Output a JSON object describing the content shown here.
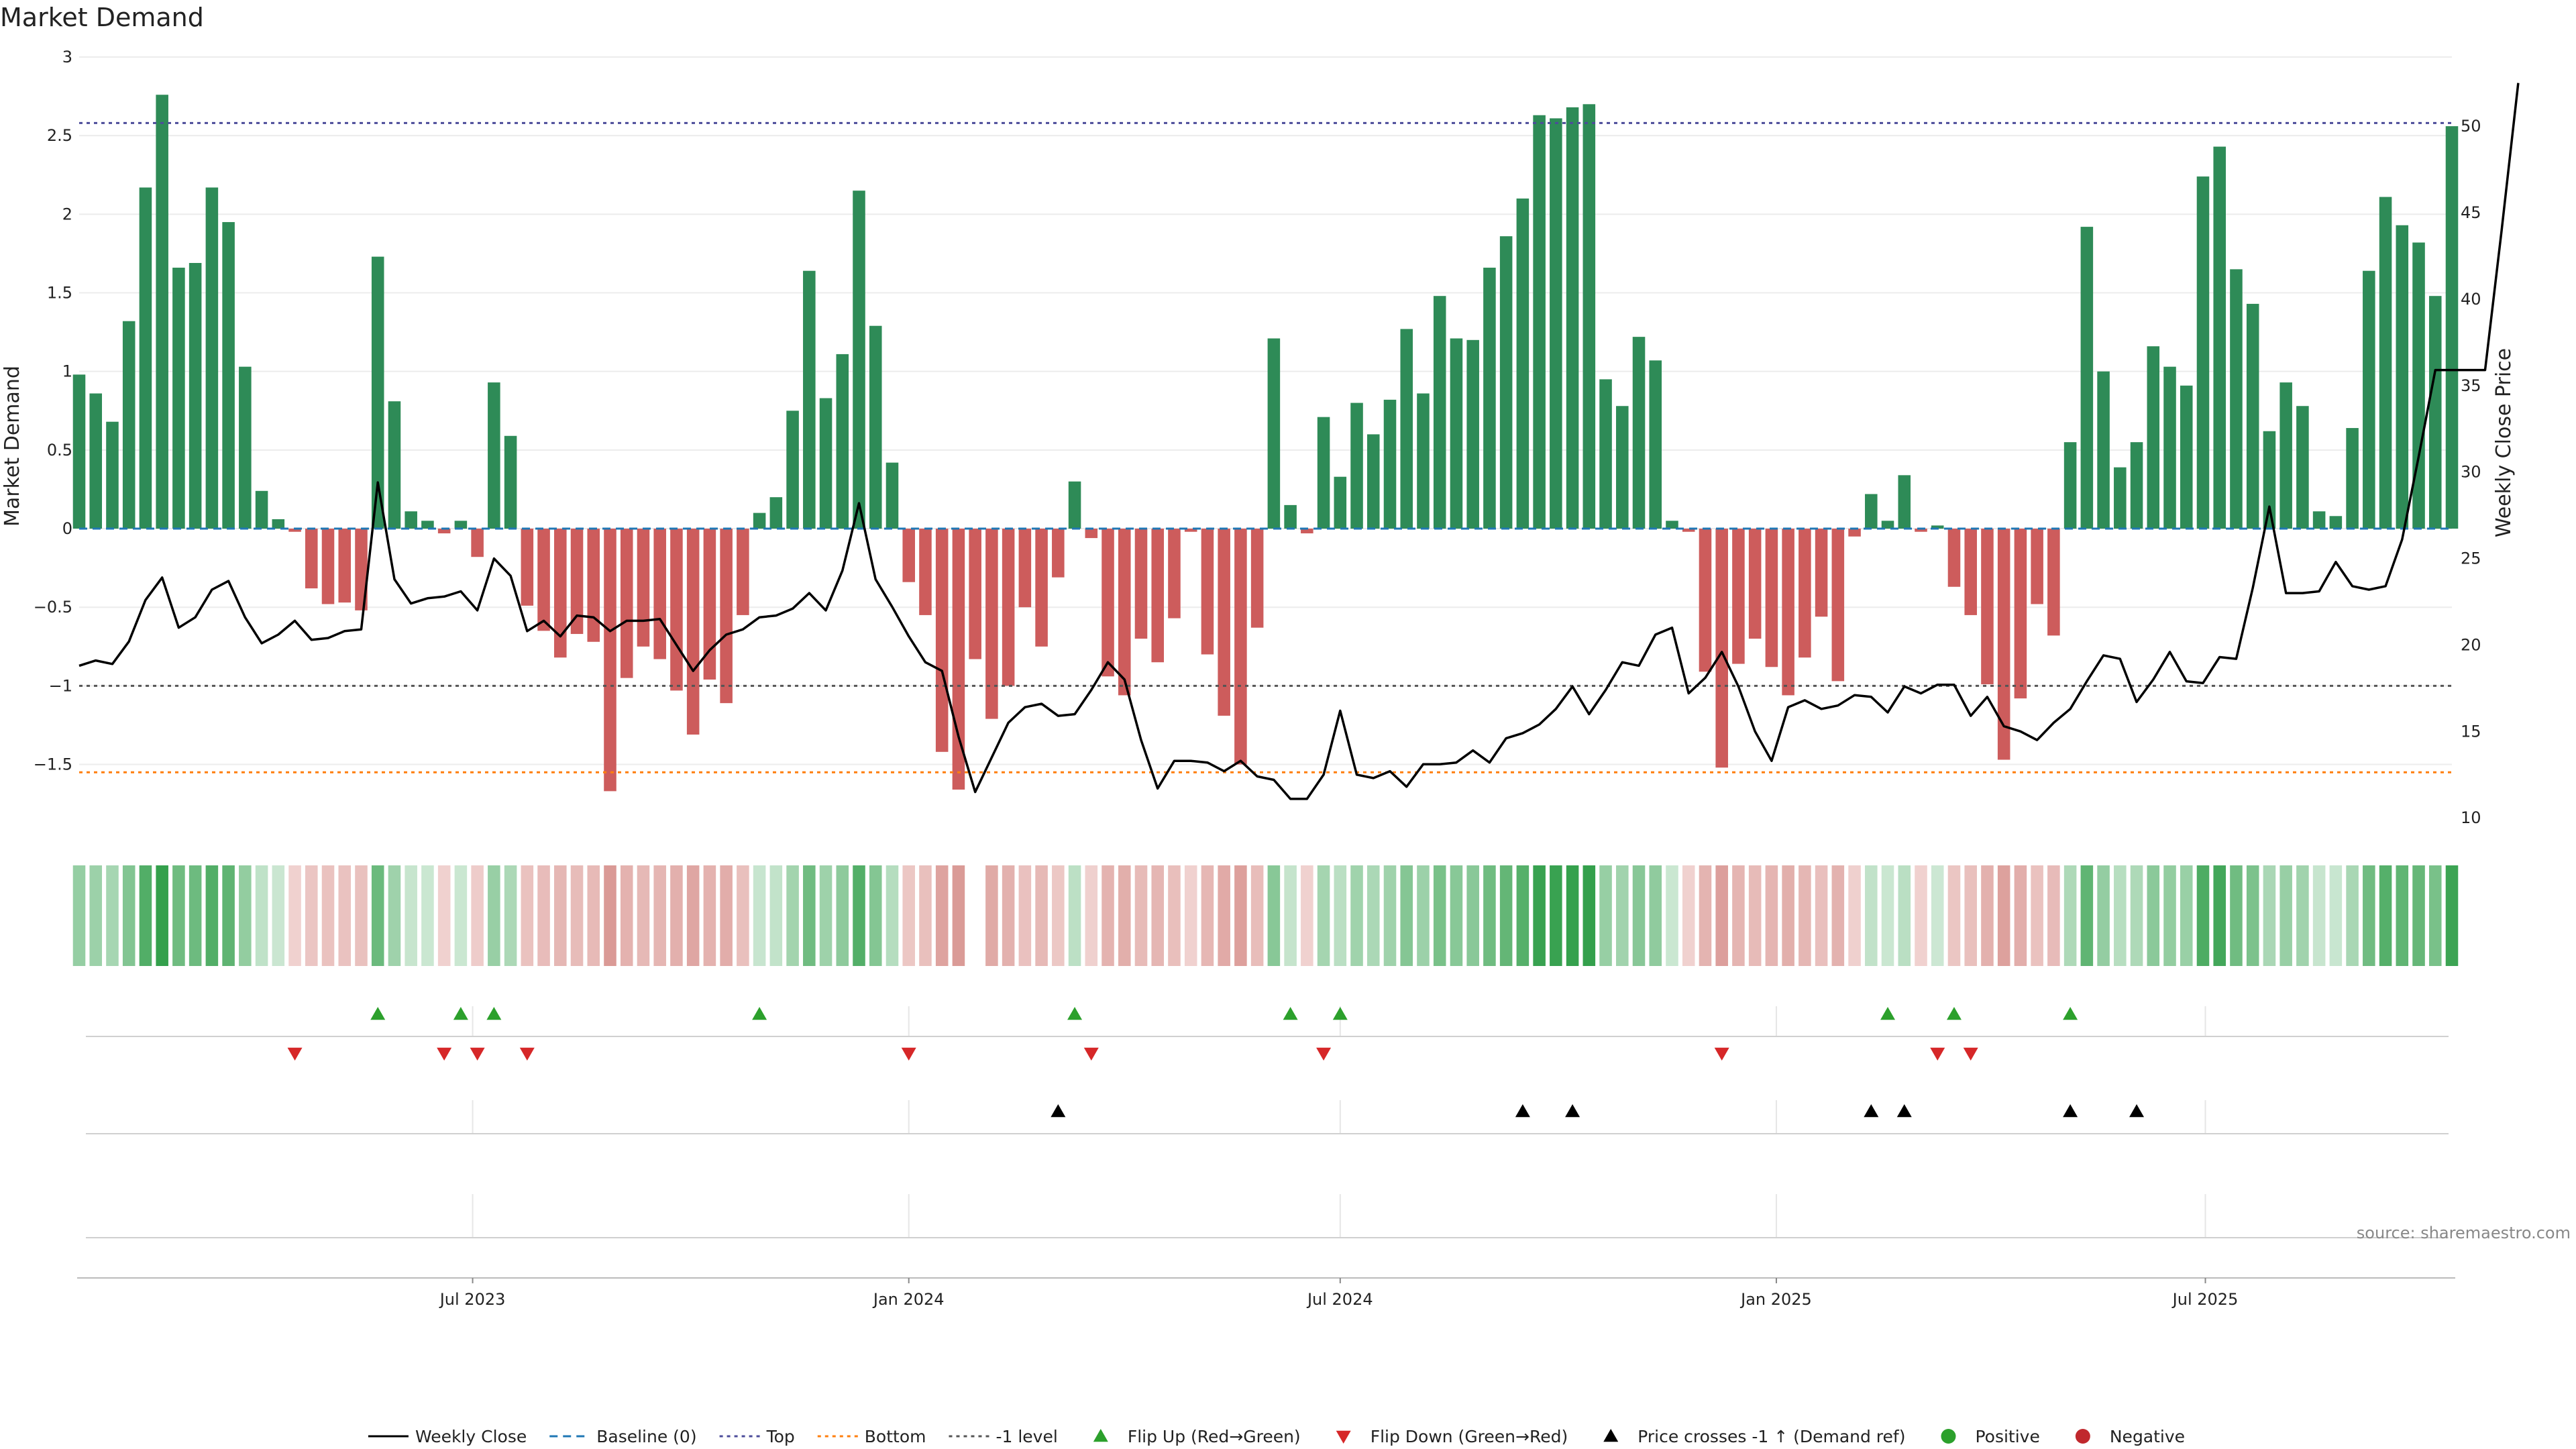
{
  "chart_data": {
    "type": "bar",
    "title": "Market Demand",
    "ylabel": "Market Demand",
    "y2label": "Weekly Close Price",
    "ylim": [
      -1.95,
      3.0
    ],
    "y2lim": [
      9,
      54
    ],
    "yticks": [
      3,
      2.5,
      2,
      1.5,
      1,
      0.5,
      0,
      -0.5,
      -1,
      -1.5
    ],
    "ytick_labels": [
      "3",
      "2.5",
      "2",
      "1.5",
      "1",
      "0.5",
      "0",
      "−0.5",
      "−1",
      "−1.5"
    ],
    "y2ticks": [
      10,
      15,
      20,
      25,
      30,
      35,
      40,
      45,
      50
    ],
    "x_range": [
      "2023-01-16",
      "2025-10-13"
    ],
    "xticks": [
      {
        "label": "Jul 2023",
        "date": "2023-07-01"
      },
      {
        "label": "Jan 2024",
        "date": "2024-01-01"
      },
      {
        "label": "Jul 2024",
        "date": "2024-07-01"
      },
      {
        "label": "Jan 2025",
        "date": "2025-01-01"
      },
      {
        "label": "Jul 2025",
        "date": "2025-07-01"
      }
    ],
    "start_week": "2023-01-16",
    "demand": [
      0.98,
      0.86,
      0.68,
      1.32,
      2.17,
      2.76,
      1.66,
      1.69,
      2.17,
      1.95,
      1.03,
      0.24,
      0.06,
      -0.02,
      -0.38,
      -0.48,
      -0.47,
      -0.52,
      1.73,
      0.81,
      0.11,
      0.05,
      -0.03,
      0.05,
      -0.18,
      0.93,
      0.59,
      -0.49,
      -0.65,
      -0.82,
      -0.67,
      -0.72,
      -1.67,
      -0.95,
      -0.75,
      -0.83,
      -1.03,
      -1.31,
      -0.96,
      -1.11,
      -0.55,
      0.1,
      0.2,
      0.75,
      1.64,
      0.83,
      1.11,
      2.15,
      1.29,
      0.42,
      -0.34,
      -0.55,
      -1.42,
      -1.66,
      -0.83,
      -1.21,
      -1.0,
      -0.5,
      -0.75,
      -0.31,
      0.3,
      -0.06,
      -0.94,
      -1.06,
      -0.7,
      -0.85,
      -0.57,
      -0.02,
      -0.8,
      -1.19,
      -1.5,
      -0.63,
      1.21,
      0.15,
      -0.03,
      0.71,
      0.33,
      0.8,
      0.6,
      0.82,
      1.27,
      0.86,
      1.48,
      1.21,
      1.2,
      1.66,
      1.86,
      2.1,
      2.63,
      2.61,
      2.68,
      2.7,
      0.95,
      0.78,
      1.22,
      1.07,
      0.05,
      -0.02,
      -0.91,
      -1.52,
      -0.86,
      -0.7,
      -0.88,
      -1.06,
      -0.82,
      -0.56,
      -0.97,
      -0.05,
      0.22,
      0.05,
      0.34,
      -0.02,
      0.02,
      -0.37,
      -0.55,
      -0.99,
      -1.47,
      -1.08,
      -0.48,
      -0.68,
      0.55,
      1.92,
      1.0,
      0.39,
      0.55,
      1.16,
      1.03,
      0.91,
      2.24,
      2.43,
      1.65,
      1.43,
      0.62,
      0.93,
      0.78,
      0.11,
      0.08,
      0.64,
      1.64,
      2.11,
      1.93,
      1.82,
      1.48,
      2.56
    ],
    "weekly_close": [
      18.8,
      19.1,
      18.9,
      20.2,
      22.6,
      23.9,
      21.0,
      21.6,
      23.2,
      23.7,
      21.6,
      20.1,
      20.6,
      21.4,
      20.3,
      20.4,
      20.8,
      20.9,
      29.4,
      23.8,
      22.4,
      22.7,
      22.8,
      23.1,
      22.0,
      25.0,
      24.0,
      20.8,
      21.4,
      20.5,
      21.7,
      21.6,
      20.8,
      21.4,
      21.4,
      21.5,
      20.0,
      18.5,
      19.7,
      20.6,
      20.9,
      21.6,
      21.7,
      22.1,
      23.0,
      22.0,
      24.3,
      28.2,
      23.8,
      22.2,
      20.5,
      19.0,
      18.5,
      14.7,
      11.5,
      13.5,
      15.5,
      16.4,
      16.6,
      15.9,
      16.0,
      17.4,
      19.0,
      18.0,
      14.5,
      11.7,
      13.3,
      13.3,
      13.2,
      12.7,
      13.3,
      12.4,
      12.2,
      11.1,
      11.1,
      12.5,
      16.2,
      12.5,
      12.3,
      12.7,
      11.8,
      13.1,
      13.1,
      13.2,
      13.9,
      13.2,
      14.6,
      14.9,
      15.4,
      16.3,
      17.6,
      16.0,
      17.4,
      19.0,
      18.8,
      20.6,
      21.0,
      17.2,
      18.1,
      19.6,
      17.6,
      15.0,
      13.3,
      16.4,
      16.8,
      16.3,
      16.5,
      17.1,
      17.0,
      16.1,
      17.6,
      17.2,
      17.7,
      17.7,
      15.9,
      17.0,
      15.3,
      15.0,
      14.5,
      15.5,
      16.3,
      17.9,
      19.4,
      19.2,
      16.7,
      18.0,
      19.6,
      17.9,
      17.8,
      19.3,
      19.2,
      23.3,
      28.0,
      23.0,
      23.0,
      23.1,
      24.8,
      23.4,
      23.2,
      23.4,
      26.1,
      30.9,
      35.9,
      35.9,
      35.9,
      35.9,
      44.0,
      52.5
    ],
    "reference_lines": [
      {
        "name": "Baseline (0)",
        "value": 0,
        "color": "#1f77b4"
      },
      {
        "name": "Top",
        "value": 2.58,
        "color": "#4c4c9a"
      },
      {
        "name": "Bottom",
        "value": -1.55,
        "color": "#ff7f0e"
      },
      {
        "name": "-1 level",
        "value": -1.0,
        "color": "#555555"
      }
    ],
    "flip_up_weeks": [
      18,
      23,
      25,
      41,
      60,
      73,
      76,
      109,
      113,
      120
    ],
    "flip_down_weeks": [
      13,
      22,
      24,
      27,
      50,
      61,
      75,
      99,
      112,
      114
    ],
    "price_cross_weeks": [
      59,
      87,
      90,
      108,
      110,
      120,
      124
    ],
    "gap_week": 54,
    "colors": {
      "positive": "#2e8b57",
      "negative": "#cd5c5c",
      "price_line": "#000000",
      "flip_up": "#2ca02c",
      "flip_down": "#d62728",
      "cross": "#000000",
      "positive_dot": "#2ca02c",
      "negative_dot": "#c0282d"
    }
  },
  "legend": [
    {
      "label": "Weekly Close",
      "kind": "line-solid",
      "color": "#000000"
    },
    {
      "label": "Baseline (0)",
      "kind": "line-dash",
      "color": "#1f77b4"
    },
    {
      "label": "Top",
      "kind": "line-dot",
      "color": "#4c4c9a"
    },
    {
      "label": "Bottom",
      "kind": "line-dot",
      "color": "#ff7f0e"
    },
    {
      "label": "-1 level",
      "kind": "line-dot",
      "color": "#555555"
    },
    {
      "label": "Flip Up (Red→Green)",
      "kind": "tri-up",
      "color": "#2ca02c"
    },
    {
      "label": "Flip Down (Green→Red)",
      "kind": "tri-down",
      "color": "#d62728"
    },
    {
      "label": "Price crosses -1 ↑ (Demand ref)",
      "kind": "tri-up",
      "color": "#000000"
    },
    {
      "label": "Positive",
      "kind": "dot",
      "color": "#2ca02c"
    },
    {
      "label": "Negative",
      "kind": "dot",
      "color": "#c0282d"
    }
  ],
  "source_text": "source: sharemaestro.com"
}
